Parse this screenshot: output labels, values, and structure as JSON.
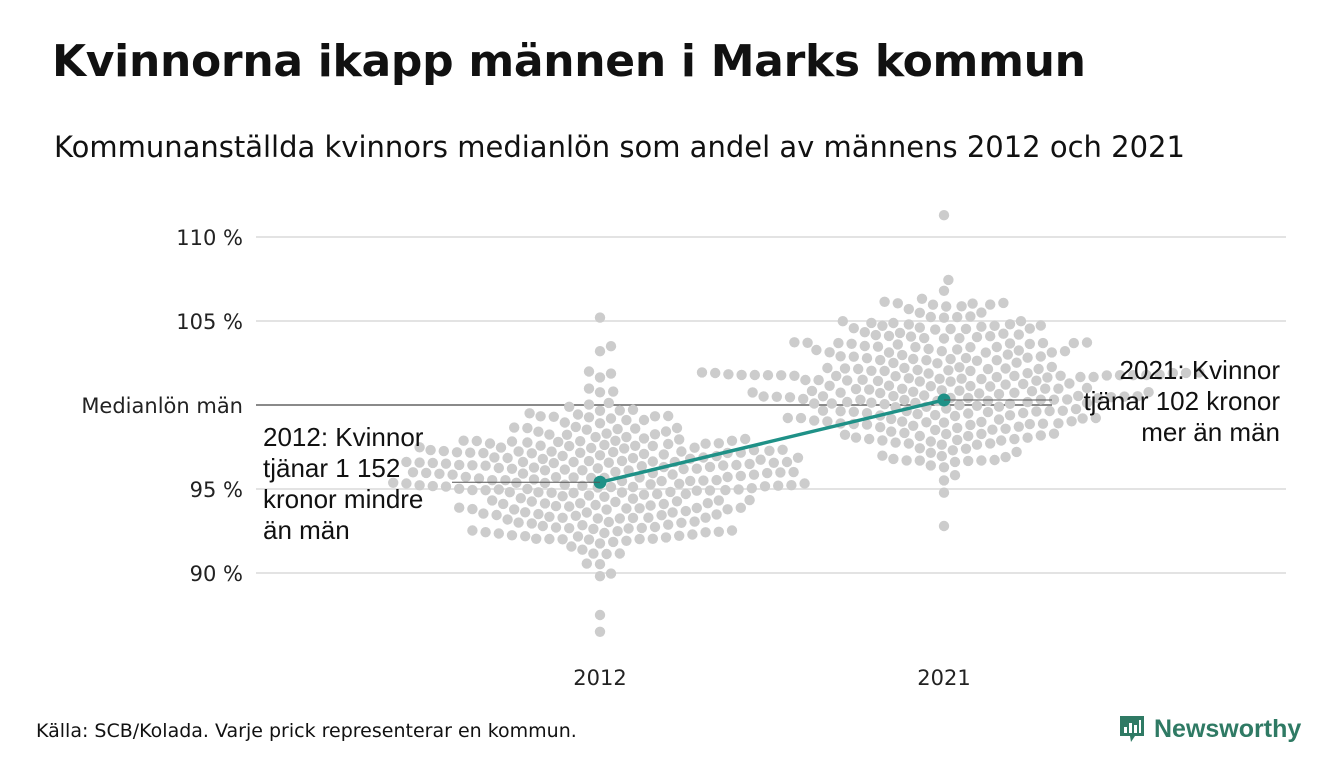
{
  "header": {
    "title": "Kvinnorna ikapp männen i Marks kommun",
    "subtitle": "Kommunanställda kvinnors medianlön som andel av männens 2012 och 2021"
  },
  "chart_data": {
    "type": "scatter",
    "title": "Kvinnorna ikapp männen i Marks kommun",
    "subtitle": "Kommunanställda kvinnors medianlön som andel av männens 2012 och 2021",
    "categories": [
      "2012",
      "2021"
    ],
    "y_ticks": [
      {
        "value": 90,
        "label": "90 %"
      },
      {
        "value": 95,
        "label": "95 %"
      },
      {
        "value": 100,
        "label": "Medianlön män"
      },
      {
        "value": 105,
        "label": "105 %"
      },
      {
        "value": 110,
        "label": "110 %"
      }
    ],
    "ylim": [
      86,
      112
    ],
    "grid": true,
    "reference_line": {
      "value": 100,
      "label": "Medianlön män"
    },
    "distributions": [
      {
        "category": "2012",
        "n": 290,
        "median": 95.8,
        "spread": 2.5,
        "min": 86.5,
        "max": 105.2
      },
      {
        "category": "2021",
        "n": 290,
        "median": 101.3,
        "spread": 2.4,
        "min": 92.8,
        "max": 111.3
      }
    ],
    "highlight_series": {
      "name": "Marks kommun",
      "values": [
        {
          "x": "2012",
          "y": 95.4
        },
        {
          "x": "2021",
          "y": 100.3
        }
      ],
      "color": "#1f9187"
    },
    "annotations": [
      {
        "x": "2012",
        "lines": [
          "2012: Kvinnor",
          "tjänar 1 152",
          "kronor mindre",
          "än män"
        ]
      },
      {
        "x": "2021",
        "lines": [
          "2021: Kvinnor",
          "tjänar 102 kronor",
          "mer än män"
        ]
      }
    ],
    "colors": {
      "dots": "#cccccc",
      "highlight": "#1f9187",
      "grid": "#e3e3e3",
      "reference": "#444444"
    }
  },
  "footer": {
    "source": "Källa: SCB/Kolada. Varje prick representerar en kommun.",
    "brand": "Newsworthy",
    "brand_icon": "newsworthy-logo-icon",
    "brand_color": "#2f7a64"
  }
}
